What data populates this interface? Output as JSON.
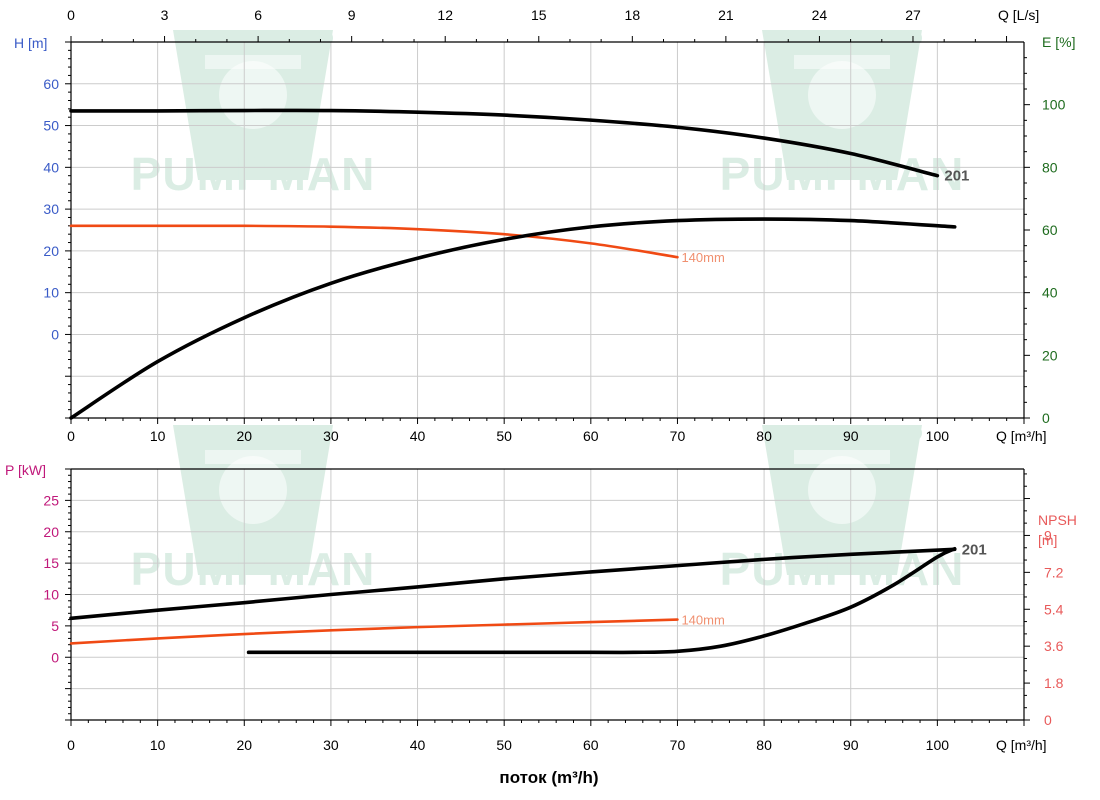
{
  "colors": {
    "head": "#3a5bc7",
    "efficiency": "#1e6b1e",
    "power": "#c0187a",
    "npsh": "#e85a5a",
    "curve_main": "#000000",
    "curve_trim": "#f04a14",
    "trim_label": "#f09070",
    "label_201": "#555555",
    "grid": "#cccccc",
    "watermark": "#d5ebe0"
  },
  "watermark": {
    "text": "PUMPMAN"
  },
  "footer": {
    "xlabel": "поток (m³/h)"
  },
  "chart_data": [
    {
      "type": "line",
      "panel": "top",
      "x_top": {
        "label": "Q [L/s]",
        "ticks": [
          0,
          3,
          6,
          9,
          12,
          15,
          18,
          21,
          24,
          27
        ],
        "lim": [
          0,
          30.56
        ]
      },
      "x_bottom": {
        "label": "Q [m³/h]",
        "ticks": [
          0,
          10,
          20,
          30,
          40,
          50,
          60,
          70,
          80,
          90,
          100
        ],
        "lim": [
          0,
          110
        ]
      },
      "y_left": {
        "label": "H [m]",
        "ticks": [
          0,
          10,
          20,
          30,
          40,
          50,
          60
        ],
        "lim": [
          -20,
          70
        ]
      },
      "y_right": {
        "label": "E [%]",
        "ticks": [
          0,
          20,
          40,
          60,
          80,
          100
        ],
        "lim": [
          0,
          120
        ]
      },
      "grid": true,
      "series": [
        {
          "name": "201",
          "quantity": "H",
          "x": [
            0,
            10,
            20,
            30,
            40,
            50,
            60,
            70,
            80,
            90,
            100
          ],
          "y": [
            53.5,
            53.5,
            53.6,
            53.6,
            53.2,
            52.5,
            51.3,
            49.6,
            47.0,
            43.3,
            38.0
          ]
        },
        {
          "name": "140mm",
          "quantity": "H",
          "x": [
            0,
            10,
            20,
            30,
            40,
            50,
            60,
            70
          ],
          "y": [
            26.0,
            26.0,
            26.0,
            25.8,
            25.2,
            24.0,
            21.8,
            18.5
          ]
        },
        {
          "name": "",
          "quantity": "E",
          "x": [
            0,
            10,
            20,
            30,
            40,
            50,
            60,
            70,
            80,
            90,
            102
          ],
          "y": [
            0,
            18,
            32,
            43,
            51,
            57,
            61,
            63,
            63.5,
            63,
            61
          ]
        }
      ]
    },
    {
      "type": "line",
      "panel": "bottom",
      "x_bottom": {
        "label": "Q [m³/h]",
        "ticks": [
          0,
          10,
          20,
          30,
          40,
          50,
          60,
          70,
          80,
          90,
          100
        ],
        "lim": [
          0,
          110
        ]
      },
      "y_left": {
        "label": "P [kW]",
        "ticks": [
          0,
          5,
          10,
          15,
          20,
          25
        ],
        "lim": [
          -10,
          30
        ]
      },
      "y_right": {
        "label_lines": [
          "NPSH",
          "[m]"
        ],
        "ticks": [
          "0",
          "1.8",
          "3.6",
          "5.4",
          "7.2",
          "9"
        ],
        "lim": [
          0,
          12.24
        ]
      },
      "grid": true,
      "series": [
        {
          "name": "201",
          "quantity": "P",
          "x": [
            0,
            10,
            20,
            30,
            40,
            50,
            60,
            70,
            80,
            90,
            102
          ],
          "y": [
            6.2,
            7.5,
            8.7,
            10.0,
            11.2,
            12.5,
            13.6,
            14.6,
            15.6,
            16.4,
            17.2
          ]
        },
        {
          "name": "140mm",
          "quantity": "P",
          "x": [
            0,
            10,
            20,
            30,
            40,
            50,
            60,
            70
          ],
          "y": [
            2.2,
            3.0,
            3.7,
            4.3,
            4.8,
            5.2,
            5.6,
            6.0
          ]
        },
        {
          "name": "",
          "quantity": "NPSH",
          "x": [
            20.5,
            40,
            60,
            65,
            70,
            75,
            80,
            85,
            90,
            95,
            100,
            102
          ],
          "y": [
            3.3,
            3.3,
            3.3,
            3.3,
            3.35,
            3.6,
            4.1,
            4.75,
            5.5,
            6.6,
            7.95,
            8.35
          ]
        }
      ]
    }
  ]
}
